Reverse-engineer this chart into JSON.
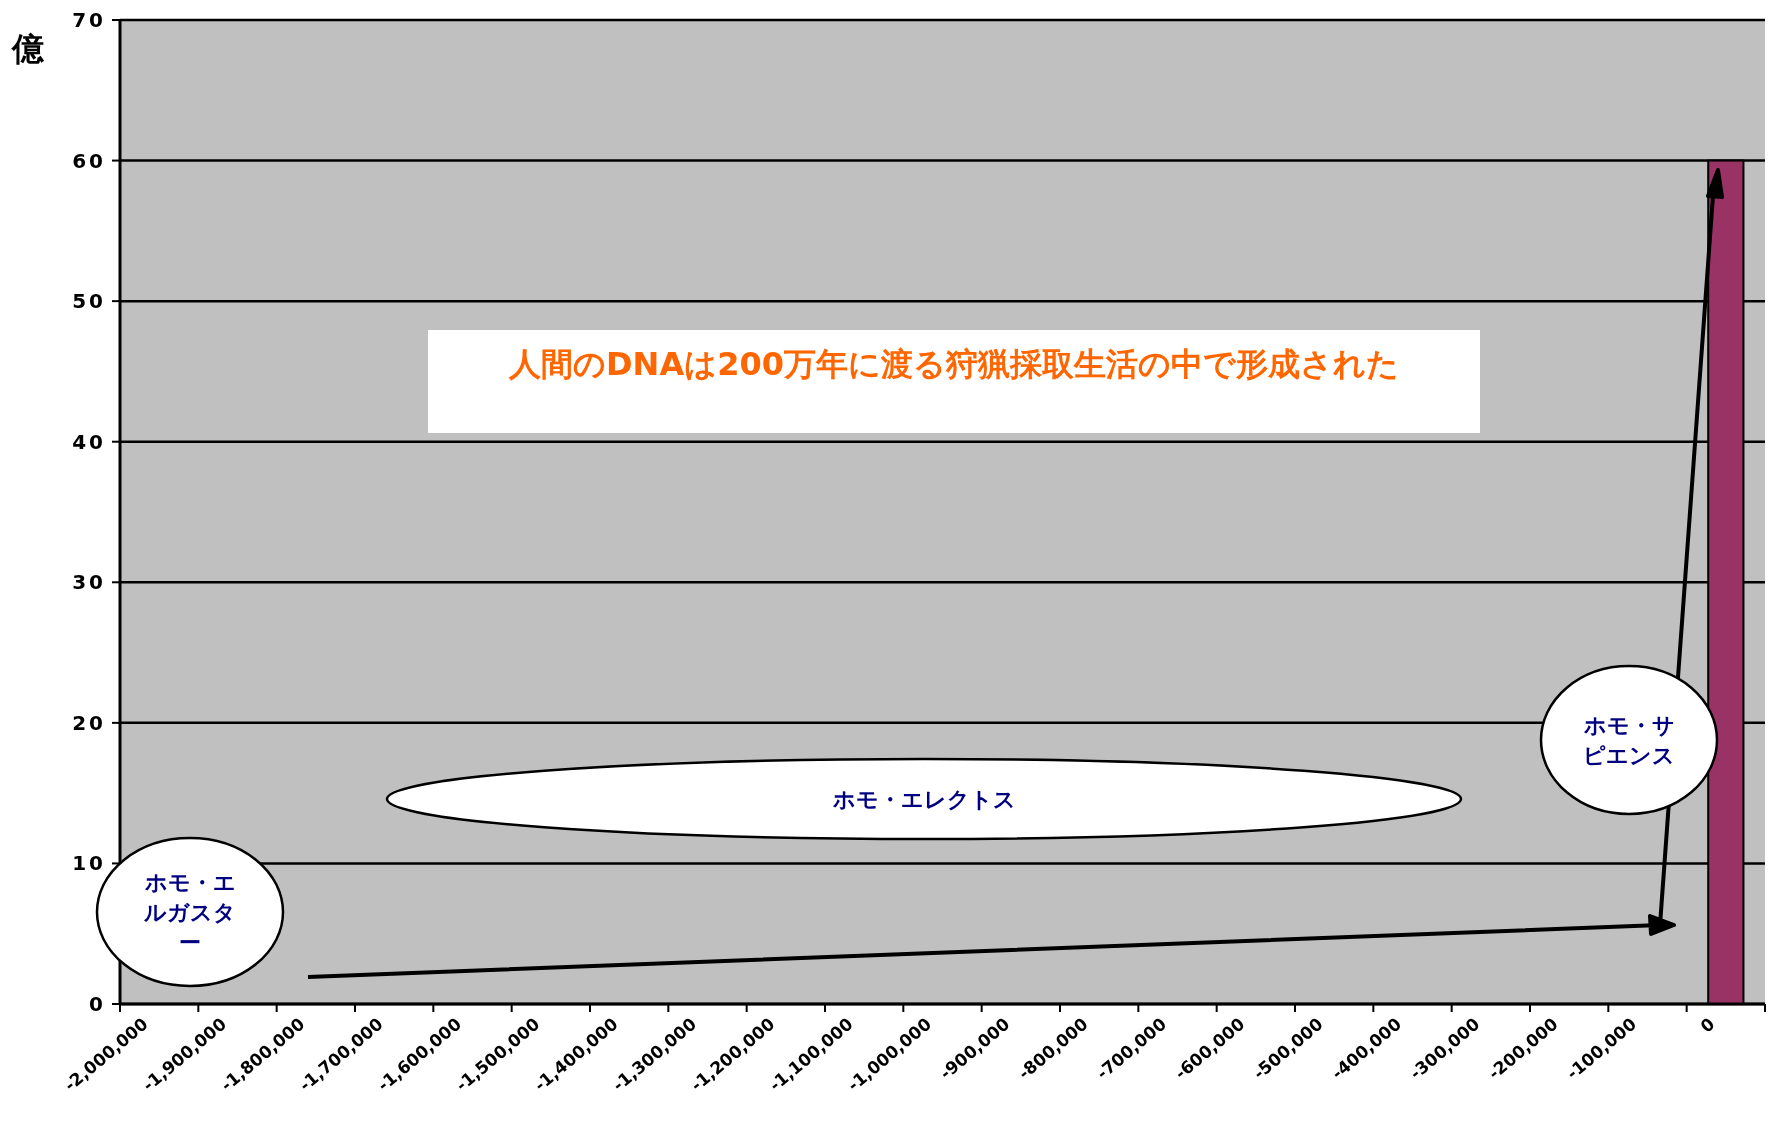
{
  "chart_data": {
    "type": "bar",
    "ylabel": "億",
    "categories": [
      "-2,000,000",
      "-1,900,000",
      "-1,800,000",
      "-1,700,000",
      "-1,600,000",
      "-1,500,000",
      "-1,400,000",
      "-1,300,000",
      "-1,200,000",
      "-1,100,000",
      "-1,000,000",
      "-900,000",
      "-800,000",
      "-700,000",
      "-600,000",
      "-500,000",
      "-400,000",
      "-300,000",
      "-200,000",
      "-100,000",
      "0"
    ],
    "values": [
      0,
      0,
      0,
      0,
      0,
      0,
      0,
      0,
      0,
      0,
      0,
      0,
      0,
      0,
      0,
      0,
      0,
      0,
      0,
      0,
      60
    ],
    "color": "#993366",
    "ylim": [
      0,
      70
    ],
    "yticks": [
      0,
      10,
      20,
      30,
      40,
      50,
      60,
      70
    ],
    "grid": "y",
    "annotations": [
      "人間のDNAは200万年に渡る狩猟採取生活の中で形成された",
      "ホモ・エルガスター",
      "ホモ・エレクトス",
      "ホモ・サピエンス"
    ]
  }
}
